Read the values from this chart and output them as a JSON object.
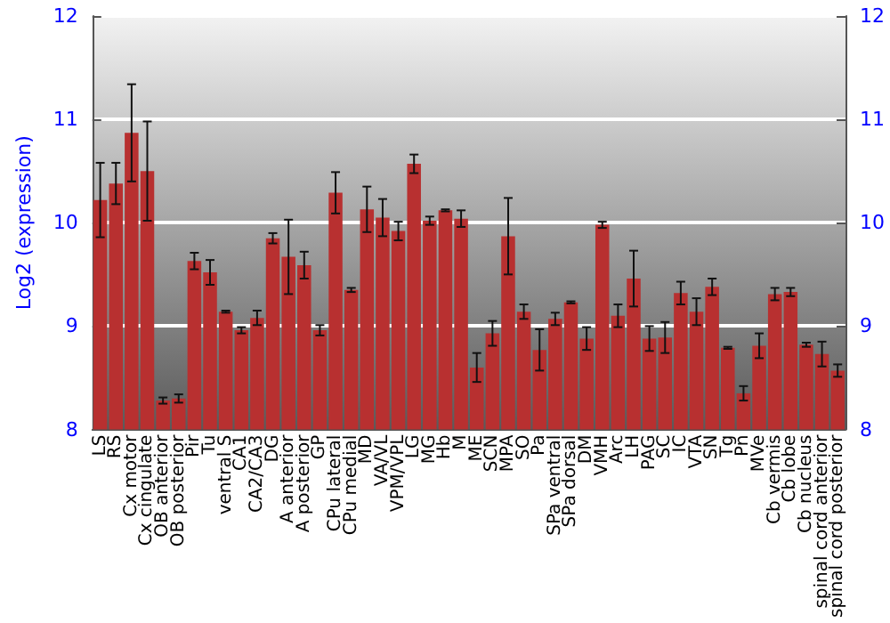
{
  "chart_data": {
    "type": "bar",
    "ylabel": "Log2 (expression)",
    "categories": [
      "LS",
      "RS",
      "Cx motor",
      "Cx cingulate",
      "OB anterior",
      "OB posterior",
      "Pir",
      "Tu",
      "ventral S",
      "CA1",
      "CA2/CA3",
      "DG",
      "A anterior",
      "A posterior",
      "GP",
      "CPu lateral",
      "CPu medial",
      "MD",
      "VA/VL",
      "VPM/VPL",
      "LG",
      "MG",
      "Hb",
      "M",
      "ME",
      "SCN",
      "MPA",
      "SO",
      "Pa",
      "SPa ventral",
      "SPa dorsal",
      "DM",
      "VMH",
      "Arc",
      "LH",
      "PAG",
      "SC",
      "IC",
      "VTA",
      "SN",
      "Tg",
      "Pn",
      "MVe",
      "Cb vermis",
      "Cb lobe",
      "Cb nucleus",
      "spinal cord anterior",
      "spinal cord posterior"
    ],
    "values": [
      10.22,
      10.38,
      10.87,
      10.5,
      8.28,
      8.3,
      9.63,
      9.52,
      9.14,
      8.96,
      9.08,
      9.85,
      9.67,
      9.59,
      8.96,
      10.29,
      9.35,
      10.13,
      10.05,
      9.92,
      10.57,
      10.02,
      10.12,
      10.04,
      8.6,
      8.93,
      9.87,
      9.14,
      8.77,
      9.07,
      9.23,
      8.88,
      9.98,
      9.1,
      9.46,
      8.88,
      8.89,
      9.32,
      9.14,
      9.38,
      8.79,
      8.35,
      8.81,
      9.31,
      9.33,
      8.82,
      8.73,
      8.57
    ],
    "errors": [
      0.36,
      0.2,
      0.47,
      0.48,
      0.03,
      0.04,
      0.08,
      0.12,
      0.01,
      0.03,
      0.07,
      0.05,
      0.36,
      0.13,
      0.05,
      0.2,
      0.02,
      0.22,
      0.18,
      0.09,
      0.09,
      0.04,
      0.01,
      0.08,
      0.14,
      0.12,
      0.37,
      0.07,
      0.2,
      0.06,
      0.01,
      0.11,
      0.03,
      0.11,
      0.27,
      0.12,
      0.15,
      0.11,
      0.13,
      0.08,
      0.01,
      0.07,
      0.12,
      0.06,
      0.04,
      0.02,
      0.12,
      0.06
    ],
    "color": "#b83030",
    "ylim": [
      8,
      12
    ],
    "yticks": [
      8,
      9,
      10,
      11,
      12
    ],
    "y2lim": [
      8,
      12
    ],
    "y2ticks": [
      8,
      9,
      10,
      11,
      12
    ],
    "grid": "y"
  }
}
